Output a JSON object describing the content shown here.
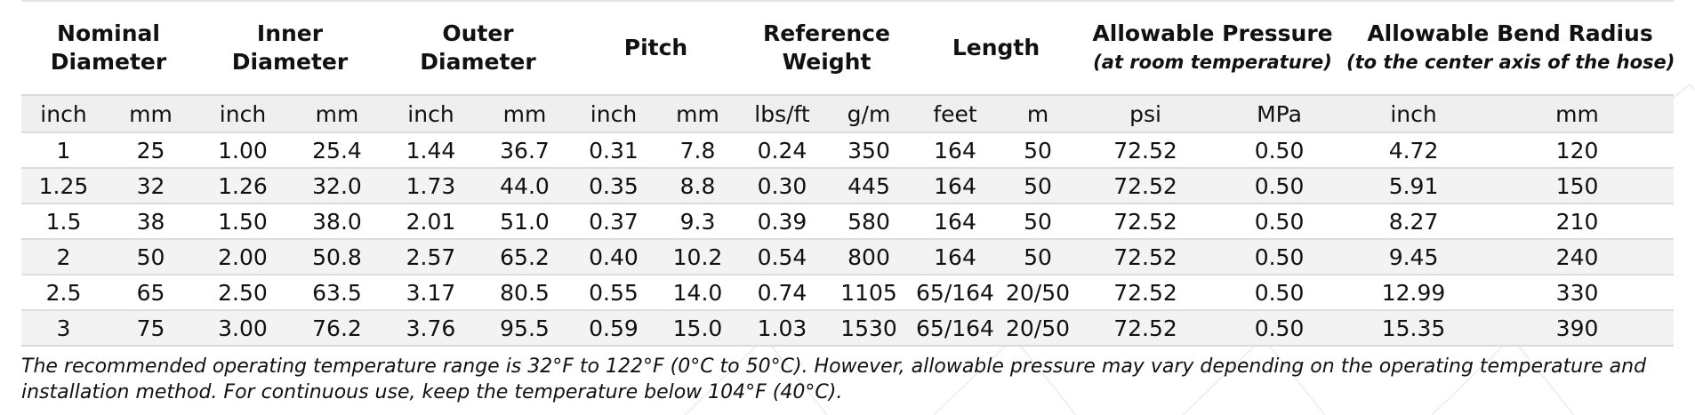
{
  "group_headers": [
    {
      "line1": "Nominal",
      "line2": "Diameter",
      "note": ""
    },
    {
      "line1": "Inner",
      "line2": "Diameter",
      "note": ""
    },
    {
      "line1": "Outer",
      "line2": "Diameter",
      "note": ""
    },
    {
      "line1": "Pitch",
      "line2": "",
      "note": ""
    },
    {
      "line1": "Reference",
      "line2": "Weight",
      "note": ""
    },
    {
      "line1": "Length",
      "line2": "",
      "note": ""
    },
    {
      "line1": "Allowable Pressure",
      "line2": "",
      "note": "(at room temperature)"
    },
    {
      "line1": "Allowable Bend Radius",
      "line2": "",
      "note": "(to the center axis of the hose)"
    }
  ],
  "units": [
    "inch",
    "mm",
    "inch",
    "mm",
    "inch",
    "mm",
    "inch",
    "mm",
    "lbs/ft",
    "g/m",
    "feet",
    "m",
    "psi",
    "MPa",
    "inch",
    "mm"
  ],
  "rows": [
    [
      "1",
      "25",
      "1.00",
      "25.4",
      "1.44",
      "36.7",
      "0.31",
      "7.8",
      "0.24",
      "350",
      "164",
      "50",
      "72.52",
      "0.50",
      "4.72",
      "120"
    ],
    [
      "1.25",
      "32",
      "1.26",
      "32.0",
      "1.73",
      "44.0",
      "0.35",
      "8.8",
      "0.30",
      "445",
      "164",
      "50",
      "72.52",
      "0.50",
      "5.91",
      "150"
    ],
    [
      "1.5",
      "38",
      "1.50",
      "38.0",
      "2.01",
      "51.0",
      "0.37",
      "9.3",
      "0.39",
      "580",
      "164",
      "50",
      "72.52",
      "0.50",
      "8.27",
      "210"
    ],
    [
      "2",
      "50",
      "2.00",
      "50.8",
      "2.57",
      "65.2",
      "0.40",
      "10.2",
      "0.54",
      "800",
      "164",
      "50",
      "72.52",
      "0.50",
      "9.45",
      "240"
    ],
    [
      "2.5",
      "65",
      "2.50",
      "63.5",
      "3.17",
      "80.5",
      "0.55",
      "14.0",
      "0.74",
      "1105",
      "65/164",
      "20/50",
      "72.52",
      "0.50",
      "12.99",
      "330"
    ],
    [
      "3",
      "75",
      "3.00",
      "76.2",
      "3.76",
      "95.5",
      "0.59",
      "15.0",
      "1.03",
      "1530",
      "65/164",
      "20/50",
      "72.52",
      "0.50",
      "15.35",
      "390"
    ]
  ],
  "footnote": "The recommended operating temperature range is 32°F to 122°F (0°C to 50°C). However, allowable pressure may vary depending on the operating temperature and installation method. For continuous use, keep the temperature below 104°F (40°C)."
}
